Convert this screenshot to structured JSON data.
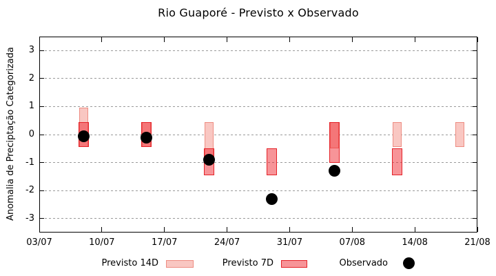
{
  "title": "Rio Guaporé - Previsto x Observado",
  "y_axis": {
    "label": "Anomalia de Preciptação Categorizada"
  },
  "legend": {
    "items": [
      {
        "label": "Previsto 14D",
        "swatch": "light-pink-band"
      },
      {
        "label": "Previsto 7D",
        "swatch": "red-band"
      },
      {
        "label": "Observado",
        "swatch": "black-dot"
      }
    ]
  },
  "colors": {
    "forecast_14d_fill": "#f9c7c2",
    "forecast_14d_border": "#ee8c82",
    "forecast_7d_fill": "rgba(237,28,36,0.47)",
    "forecast_7d_border": "#e42127",
    "observed": "#000000",
    "gridline": "#999999",
    "frame": "#000000"
  },
  "chart_data": {
    "type": "bar",
    "subtype": "forecast-range-bars-with-observed-scatter",
    "title": "Rio Guaporé - Previsto x Observado",
    "ylabel": "Anomalia de Preciptação Categorizada",
    "xlabel": "",
    "grid": true,
    "legend_position": "bottom",
    "ylim": [
      -3.5,
      3.5
    ],
    "xlim": [
      0,
      49
    ],
    "y_ticks": [
      3,
      2,
      1,
      0,
      -1,
      -2,
      -3
    ],
    "x_ticks": [
      {
        "day": 0,
        "label": "03/07"
      },
      {
        "day": 7,
        "label": "10/07"
      },
      {
        "day": 14,
        "label": "17/07"
      },
      {
        "day": 21,
        "label": "24/07"
      },
      {
        "day": 28,
        "label": "31/07"
      },
      {
        "day": 35,
        "label": "07/08"
      },
      {
        "day": 42,
        "label": "14/08"
      },
      {
        "day": 49,
        "label": "21/08"
      }
    ],
    "series": [
      {
        "name": "Previsto 14D",
        "role": "forecast-14d",
        "type": "range-bar",
        "fill": "#f9c7c2",
        "border": "#ee8c82",
        "points": [
          {
            "date": "08/07",
            "day": 5,
            "hi": 0.95,
            "lo": -0.45
          },
          {
            "date": "15/07",
            "day": 12,
            "hi": 0.45,
            "lo": -0.45
          },
          {
            "date": "22/07",
            "day": 19,
            "hi": 0.45,
            "lo": -1.0
          },
          {
            "date": "05/08",
            "day": 33,
            "hi": 0.45,
            "lo": -0.5
          },
          {
            "date": "12/08",
            "day": 40,
            "hi": 0.45,
            "lo": -0.45
          },
          {
            "date": "19/08",
            "day": 47,
            "hi": 0.45,
            "lo": -0.45
          }
        ]
      },
      {
        "name": "Previsto 7D",
        "role": "forecast-7d",
        "type": "range-bar",
        "fill": "rgba(237,28,36,0.47)",
        "border": "#e42127",
        "points": [
          {
            "date": "08/07",
            "day": 5,
            "hi": 0.45,
            "lo": -0.45
          },
          {
            "date": "15/07",
            "day": 12,
            "hi": 0.45,
            "lo": -0.45
          },
          {
            "date": "22/07",
            "day": 19,
            "hi": -0.5,
            "lo": -1.45
          },
          {
            "date": "29/07",
            "day": 26,
            "hi": -0.5,
            "lo": -1.45
          },
          {
            "date": "05/08",
            "day": 33,
            "hi": 0.45,
            "lo": -1.0
          },
          {
            "date": "12/08",
            "day": 40,
            "hi": -0.5,
            "lo": -1.45
          }
        ]
      },
      {
        "name": "Observado",
        "role": "observed",
        "type": "scatter",
        "fill": "#000000",
        "points": [
          {
            "date": "08/07",
            "day": 5,
            "v": -0.05
          },
          {
            "date": "15/07",
            "day": 12,
            "v": -0.1
          },
          {
            "date": "22/07",
            "day": 19,
            "v": -0.9
          },
          {
            "date": "29/07",
            "day": 26,
            "v": -2.3
          },
          {
            "date": "05/08",
            "day": 33,
            "v": -1.3
          }
        ]
      }
    ]
  }
}
